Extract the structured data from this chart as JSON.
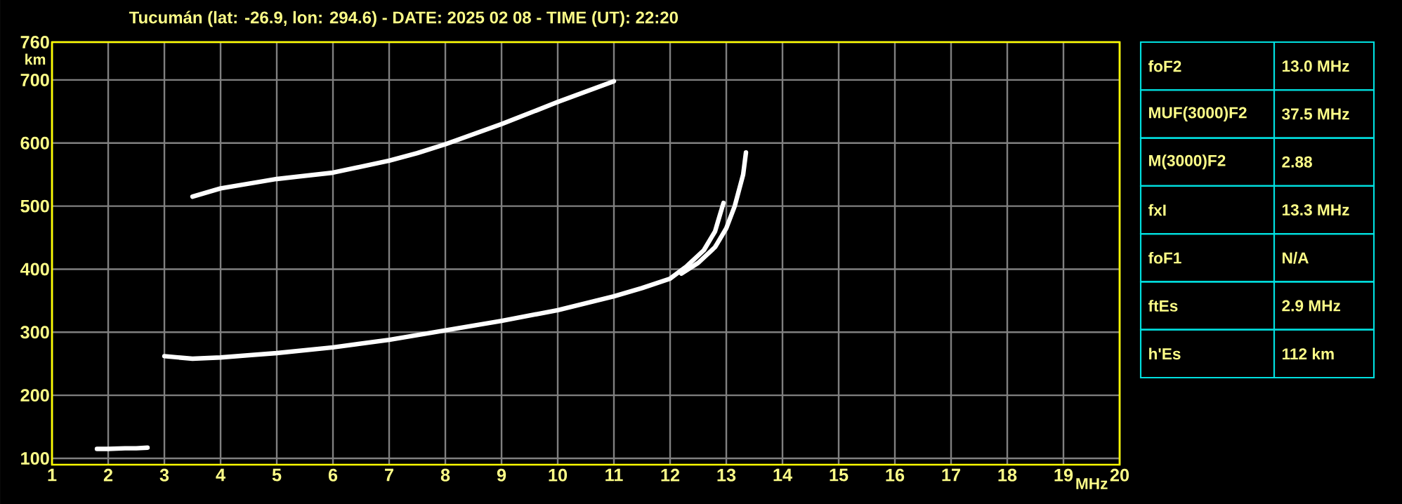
{
  "chart_data": [
    {
      "type": "line",
      "title": "Tucumán (lat: -26.9, lon: 294.6) - DATE: 2025 02 08 - TIME (UT): 22:20",
      "xlabel": "MHz",
      "ylabel": "km",
      "xlim": [
        1,
        20
      ],
      "ylim": [
        90,
        760
      ],
      "xticks": [
        1,
        2,
        3,
        4,
        5,
        6,
        7,
        8,
        9,
        10,
        11,
        12,
        13,
        14,
        15,
        16,
        17,
        18,
        19,
        20
      ],
      "yticks": [
        100,
        200,
        300,
        400,
        500,
        600,
        700,
        760
      ],
      "grid": true,
      "marker": "none",
      "line_style": "solid",
      "series": [
        {
          "color": "#ffffff",
          "x": [
            1.8,
            2.0,
            2.3,
            2.5,
            2.7
          ],
          "values": [
            115,
            115,
            116,
            116,
            117
          ]
        },
        {
          "color": "#ffffff",
          "x": [
            3.0,
            3.5,
            4,
            5,
            6,
            7,
            8,
            9,
            10,
            11,
            11.5,
            12,
            12.3,
            12.6,
            12.8,
            12.95
          ],
          "values": [
            262,
            258,
            260,
            267,
            276,
            288,
            303,
            318,
            335,
            357,
            370,
            385,
            405,
            430,
            460,
            505
          ]
        },
        {
          "color": "#ffffff",
          "x": [
            12.2,
            12.5,
            12.8,
            13.0,
            13.15,
            13.3,
            13.35
          ],
          "values": [
            393,
            410,
            435,
            465,
            500,
            550,
            585
          ]
        },
        {
          "color": "#ffffff",
          "x": [
            3.5,
            4,
            5,
            6,
            7,
            7.5,
            8,
            9,
            10,
            11
          ],
          "values": [
            515,
            528,
            543,
            553,
            572,
            584,
            598,
            630,
            665,
            698
          ]
        }
      ]
    },
    {
      "type": "other",
      "annotations": [
        "foF2",
        "13.0 MHz",
        "MUF(3000)F2",
        "37.5 MHz",
        "M(3000)F2",
        "2.88",
        "fxI",
        "13.3 MHz",
        "foF1",
        "N/A",
        "ftEs",
        "2.9 MHz",
        "h'Es",
        "112 km"
      ]
    }
  ]
}
